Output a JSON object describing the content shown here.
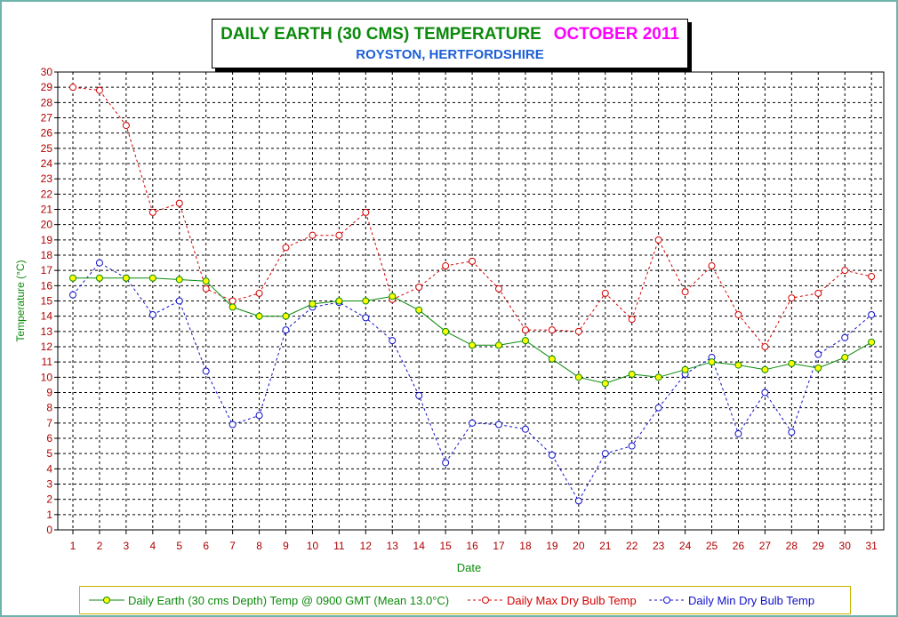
{
  "chart_data": {
    "type": "line",
    "title": "DAILY EARTH (30 CMS) TEMPERATURE",
    "title_month": "OCTOBER 2011",
    "subtitle": "ROYSTON, HERTFORDSHIRE",
    "xlabel": "Date",
    "ylabel": "Temperature (°C)",
    "ylim": [
      0,
      30
    ],
    "grid": true,
    "legend_position": "bottom",
    "categories": [
      "1",
      "2",
      "3",
      "4",
      "5",
      "6",
      "7",
      "8",
      "9",
      "10",
      "11",
      "12",
      "13",
      "14",
      "15",
      "16",
      "17",
      "18",
      "19",
      "20",
      "21",
      "22",
      "23",
      "24",
      "25",
      "26",
      "27",
      "28",
      "29",
      "30",
      "31"
    ],
    "yticks": [
      "0",
      "1",
      "2",
      "3",
      "4",
      "5",
      "6",
      "7",
      "8",
      "9",
      "10",
      "11",
      "12",
      "13",
      "14",
      "15",
      "16",
      "17",
      "18",
      "19",
      "20",
      "21",
      "22",
      "23",
      "24",
      "25",
      "26",
      "27",
      "28",
      "29",
      "30"
    ],
    "series": [
      {
        "name": "Daily Earth (30 cms Depth) Temp @ 0900 GMT (Mean 13.0°C)",
        "color": "#0b8a0b",
        "marker_fill": "#ffff00",
        "style": "solid",
        "values": [
          16.5,
          16.5,
          16.5,
          16.5,
          16.4,
          16.3,
          14.6,
          14.0,
          14.0,
          14.8,
          15.0,
          15.0,
          15.3,
          14.4,
          13.0,
          12.1,
          12.1,
          12.4,
          11.2,
          10.0,
          9.6,
          10.2,
          10.0,
          10.5,
          11.0,
          10.8,
          10.5,
          10.9,
          10.6,
          11.3,
          12.3
        ]
      },
      {
        "name": "Daily Max Dry Bulb Temp",
        "color": "#d40000",
        "marker_fill": "none",
        "style": "dashed",
        "values": [
          29.0,
          28.8,
          26.5,
          20.8,
          21.4,
          15.8,
          15.0,
          15.5,
          18.5,
          19.3,
          19.3,
          20.8,
          15.1,
          15.9,
          17.3,
          17.6,
          15.8,
          13.1,
          13.1,
          13.0,
          15.5,
          13.8,
          19.0,
          15.6,
          17.3,
          14.1,
          12.0,
          15.2,
          15.5,
          17.0,
          16.6
        ]
      },
      {
        "name": "Daily Min Dry Bulb Temp",
        "color": "#1010c8",
        "marker_fill": "none",
        "style": "dashed",
        "values": [
          15.4,
          17.5,
          16.5,
          14.1,
          15.0,
          10.4,
          6.9,
          7.5,
          13.1,
          14.6,
          14.9,
          13.9,
          12.4,
          8.8,
          4.4,
          7.0,
          6.9,
          6.6,
          4.9,
          1.9,
          5.0,
          5.5,
          8.0,
          10.2,
          11.3,
          6.3,
          9.0,
          6.4,
          11.5,
          12.6,
          14.1
        ]
      }
    ]
  }
}
